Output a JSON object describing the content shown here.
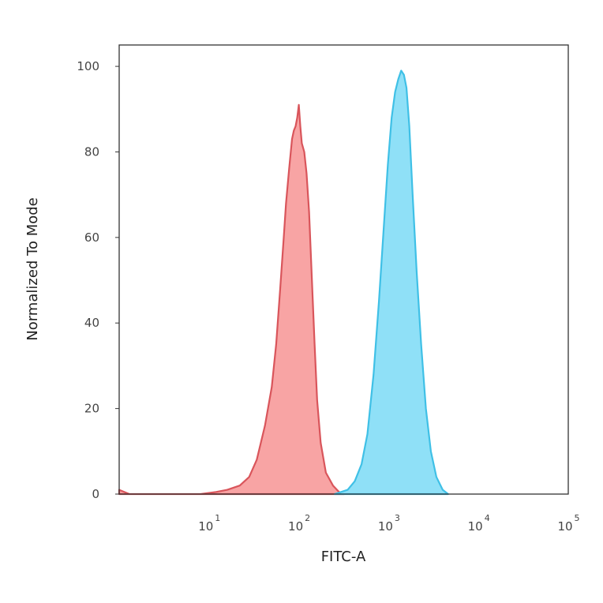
{
  "chart_data": {
    "type": "area",
    "title": "",
    "xlabel": "FITC-A",
    "ylabel": "Normalized To Mode",
    "x_scale": "log",
    "xlim": [
      1,
      100000
    ],
    "ylim": [
      0,
      105
    ],
    "x_ticks": [
      {
        "base": "10",
        "exp": "1",
        "value": 10
      },
      {
        "base": "10",
        "exp": "2",
        "value": 100
      },
      {
        "base": "10",
        "exp": "3",
        "value": 1000
      },
      {
        "base": "10",
        "exp": "4",
        "value": 10000
      },
      {
        "base": "10",
        "exp": "5",
        "value": 100000
      }
    ],
    "y_ticks": [
      {
        "label": "0",
        "value": 0
      },
      {
        "label": "20",
        "value": 20
      },
      {
        "label": "40",
        "value": 40
      },
      {
        "label": "60",
        "value": 60
      },
      {
        "label": "80",
        "value": 80
      },
      {
        "label": "100",
        "value": 100
      }
    ],
    "grid": false,
    "series": [
      {
        "fill": "#f8a4a4",
        "stroke": "#d9555b",
        "x": [
          1,
          1.3,
          8,
          12,
          16,
          22,
          28,
          34,
          42,
          50,
          56,
          62,
          68,
          72,
          78,
          84,
          88,
          92,
          96,
          100,
          104,
          108,
          115,
          122,
          130,
          140,
          150,
          160,
          175,
          200,
          240,
          280,
          320
        ],
        "y": [
          1,
          0,
          0,
          0.5,
          1,
          2,
          4,
          8,
          16,
          25,
          35,
          48,
          60,
          68,
          76,
          83,
          85,
          86,
          88,
          91,
          86,
          82,
          80,
          75,
          66,
          50,
          35,
          22,
          12,
          5,
          2,
          0.5,
          0
        ]
      },
      {
        "fill": "#8fe0f7",
        "stroke": "#3fc0e6",
        "x": [
          250,
          350,
          420,
          500,
          580,
          680,
          780,
          880,
          980,
          1080,
          1180,
          1280,
          1380,
          1480,
          1580,
          1700,
          1850,
          2050,
          2300,
          2600,
          2950,
          3400,
          4000,
          4600
        ],
        "y": [
          0,
          1,
          3,
          7,
          14,
          28,
          45,
          62,
          77,
          88,
          94,
          97,
          99,
          98,
          95,
          86,
          70,
          52,
          35,
          20,
          10,
          4,
          1,
          0
        ]
      }
    ]
  }
}
